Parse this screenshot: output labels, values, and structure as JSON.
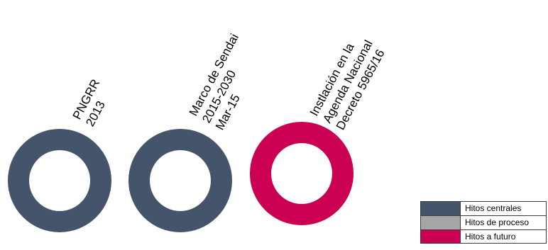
{
  "milestones": [
    {
      "lines": [
        "PNGRR",
        "2013"
      ],
      "color": "#44546a"
    },
    {
      "lines": [
        "Marco de Sendai",
        "2015-2030",
        "Mar-15"
      ],
      "color": "#44546a"
    },
    {
      "lines": [
        "Instlación en la",
        "Agenda Nacional",
        "Decreto 5965/16"
      ],
      "color": "#cc0052"
    }
  ],
  "legend": [
    {
      "label": "Hitos centrales",
      "color": "#44546a"
    },
    {
      "label": "Hitos de proceso",
      "color": "#a6a6a6"
    },
    {
      "label": "Hitos a futuro",
      "color": "#cc0052"
    }
  ]
}
